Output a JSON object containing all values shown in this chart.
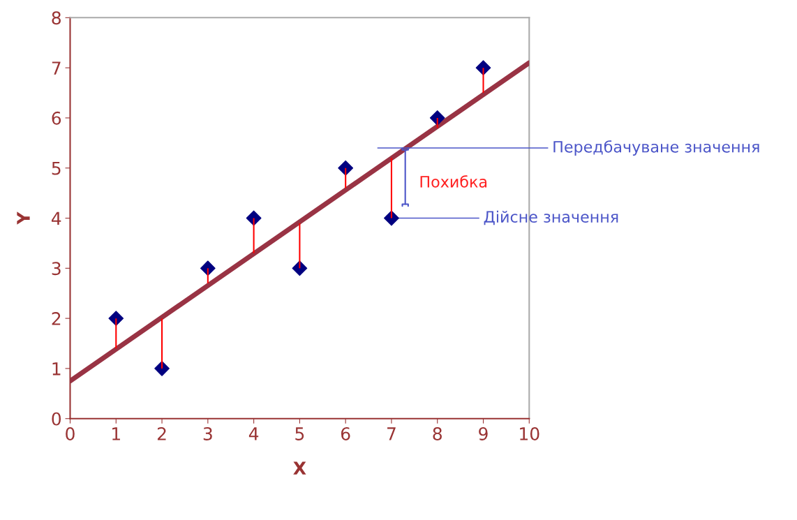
{
  "chart_data": {
    "type": "scatter",
    "xlabel": "X",
    "ylabel": "Y",
    "xlim": [
      0,
      10
    ],
    "ylim": [
      0,
      8
    ],
    "xticks": [
      0,
      1,
      2,
      3,
      4,
      5,
      6,
      7,
      8,
      9,
      10
    ],
    "yticks": [
      0,
      1,
      2,
      3,
      4,
      5,
      6,
      7,
      8
    ],
    "grid": false,
    "legend": false,
    "series": [
      {
        "color": "#000080",
        "marker": "diamond",
        "x": [
          1,
          2,
          3,
          4,
          5,
          6,
          7,
          8,
          9
        ],
        "values": [
          2,
          1,
          3,
          4,
          3,
          5,
          4,
          6,
          7
        ],
        "errors": [
          [
            1.4,
            2
          ],
          [
            1,
            2.0
          ],
          [
            2.7,
            3
          ],
          [
            3.3,
            4
          ],
          [
            3,
            3.9
          ],
          [
            4.6,
            5
          ],
          [
            4,
            5.2
          ],
          [
            5.8,
            6
          ],
          [
            6.5,
            7
          ]
        ]
      },
      {
        "type": "line",
        "color": "#993344",
        "marker": "none",
        "line_style": "solid",
        "x": [
          0,
          10
        ],
        "values": [
          0.75,
          7.1
        ]
      }
    ],
    "annotations": [
      "Передбачуване значення",
      "Похибка",
      {
        "text": "Дійсне значення",
        "x": 7,
        "y": 4
      }
    ]
  }
}
